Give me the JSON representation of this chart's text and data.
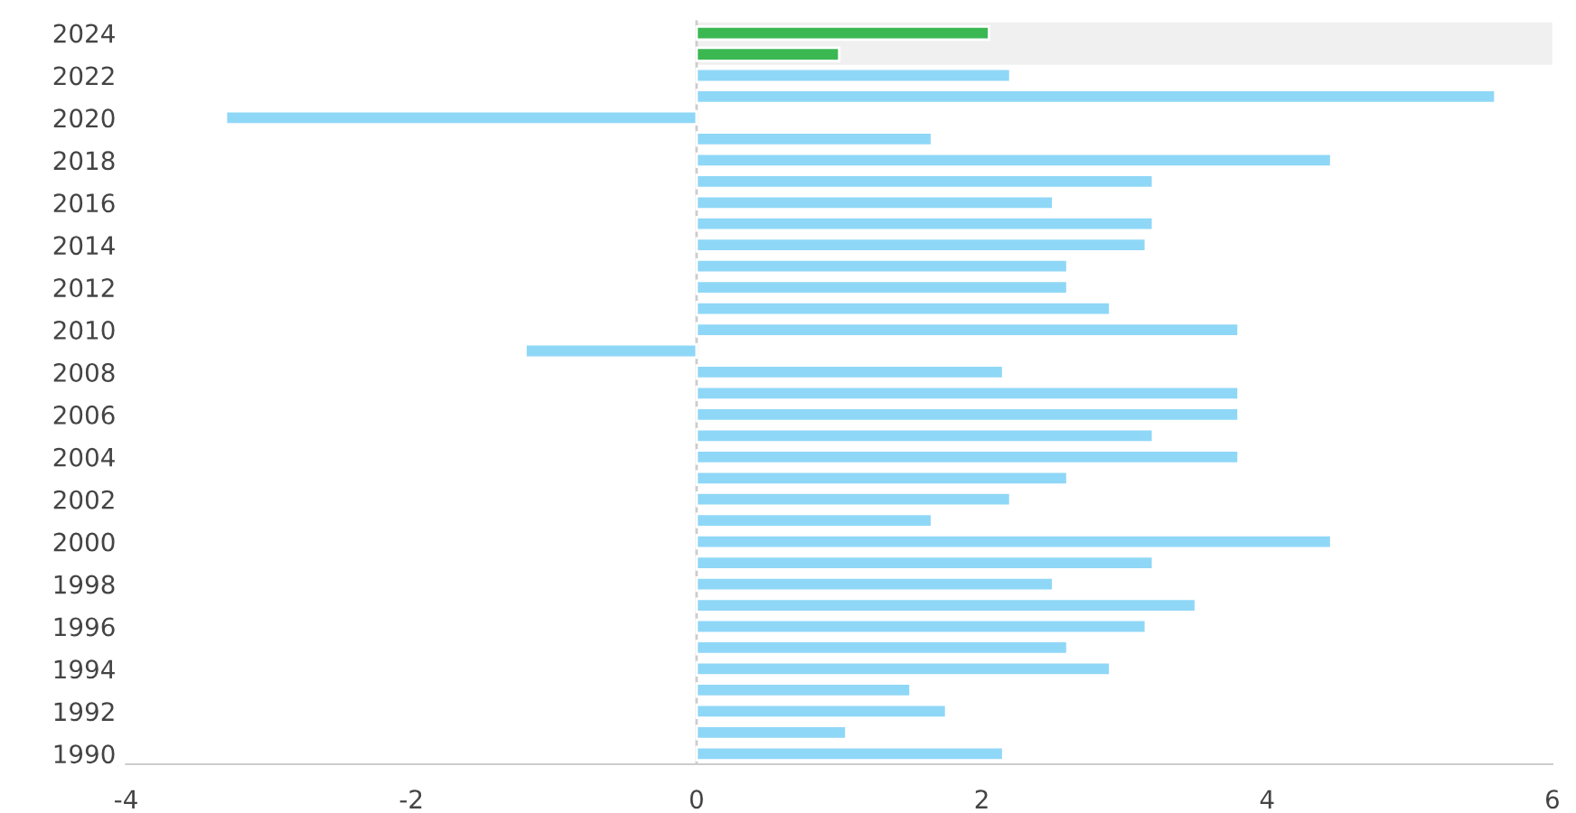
{
  "chart_data": {
    "type": "bar",
    "orientation": "horizontal",
    "categories": [
      "2024",
      null,
      "2022",
      null,
      "2020",
      null,
      "2018",
      null,
      "2016",
      null,
      "2014",
      null,
      "2012",
      null,
      "2010",
      null,
      "2008",
      null,
      "2006",
      null,
      "2004",
      null,
      "2002",
      null,
      "2000",
      null,
      "1998",
      null,
      "1996",
      null,
      "1994",
      null,
      "1992",
      null,
      "1990"
    ],
    "values": [
      2.05,
      1.0,
      2.2,
      5.6,
      -3.3,
      1.65,
      4.45,
      3.2,
      2.5,
      3.2,
      3.15,
      2.6,
      2.6,
      2.9,
      3.8,
      -1.2,
      2.15,
      3.8,
      3.8,
      3.2,
      3.8,
      2.6,
      2.2,
      1.65,
      4.45,
      3.2,
      2.5,
      3.5,
      3.15,
      2.6,
      2.9,
      1.5,
      1.75,
      1.05,
      2.15
    ],
    "colors": [
      "#3cb853",
      "#3cb853",
      "#8fd7f7",
      "#8fd7f7",
      "#8fd7f7",
      "#8fd7f7",
      "#8fd7f7",
      "#8fd7f7",
      "#8fd7f7",
      "#8fd7f7",
      "#8fd7f7",
      "#8fd7f7",
      "#8fd7f7",
      "#8fd7f7",
      "#8fd7f7",
      "#8fd7f7",
      "#8fd7f7",
      "#8fd7f7",
      "#8fd7f7",
      "#8fd7f7",
      "#8fd7f7",
      "#8fd7f7",
      "#8fd7f7",
      "#8fd7f7",
      "#8fd7f7",
      "#8fd7f7",
      "#8fd7f7",
      "#8fd7f7",
      "#8fd7f7",
      "#8fd7f7",
      "#8fd7f7",
      "#8fd7f7",
      "#8fd7f7",
      "#8fd7f7",
      "#8fd7f7"
    ],
    "xlim": [
      -4,
      6
    ],
    "xticks": [
      -4,
      -2,
      0,
      2,
      4,
      6
    ],
    "ref_lines": [
      {
        "axis": "x",
        "value": 0,
        "color": "#cccccc"
      }
    ],
    "grid": false,
    "legend": false
  }
}
